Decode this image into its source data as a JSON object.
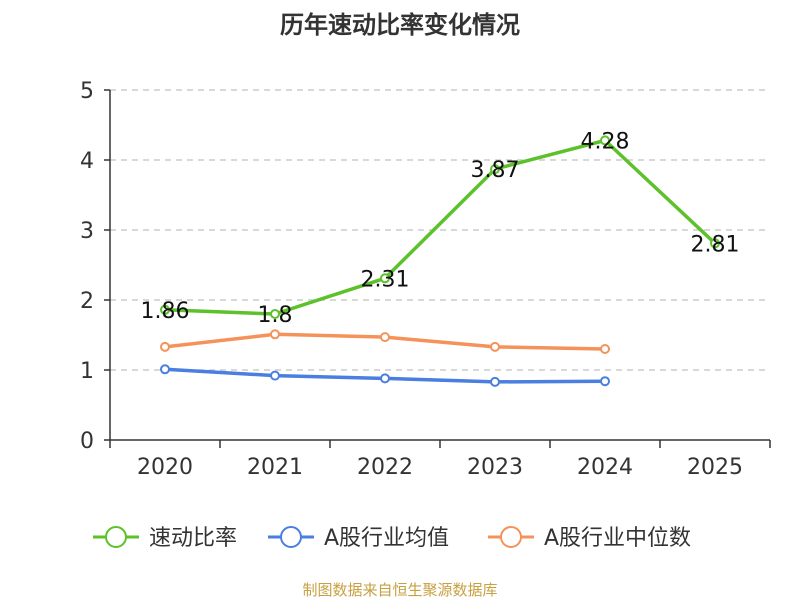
{
  "chart_data": {
    "type": "line",
    "title": "历年速动比率变化情况",
    "categories": [
      "2020",
      "2021",
      "2022",
      "2023",
      "2024",
      "2025"
    ],
    "ylim": [
      0,
      5
    ],
    "yticks": [
      0,
      1,
      2,
      3,
      4,
      5
    ],
    "grid": true,
    "legend_position": "bottom",
    "series": [
      {
        "name": "速动比率",
        "color": "#5cc12a",
        "values": [
          1.86,
          1.8,
          2.31,
          3.87,
          4.28,
          2.81
        ],
        "labels": [
          "1.86",
          "1.8",
          "2.31",
          "3.87",
          "4.28",
          "2.81"
        ],
        "show_labels": true
      },
      {
        "name": "A股行业均值",
        "color": "#4a7ee0",
        "values": [
          1.01,
          0.92,
          0.88,
          0.83,
          0.84,
          null
        ],
        "show_labels": false
      },
      {
        "name": "A股行业中位数",
        "color": "#f5925a",
        "values": [
          1.33,
          1.51,
          1.47,
          1.33,
          1.3,
          null
        ],
        "show_labels": false
      }
    ],
    "source": "制图数据来自恒生聚源数据库"
  },
  "colors": {
    "axis": "#333333",
    "grid": "#cccccc",
    "title": "#333333",
    "source": "#c8a040"
  }
}
